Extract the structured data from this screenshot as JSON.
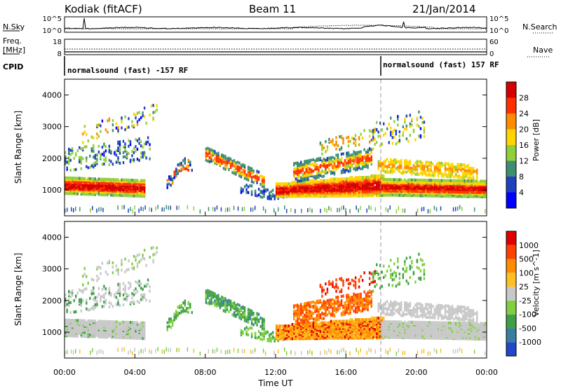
{
  "header": {
    "station": "Kodiak (fitACF)",
    "beam": "Beam 11",
    "date": "21/Jan/2014"
  },
  "top_panel": {
    "left_label": "N.Sky",
    "right_label": "N.Search",
    "left_ticks": [
      "10^5",
      "10^0"
    ],
    "right_ticks": [
      "10^5",
      "10^0"
    ]
  },
  "freq_panel": {
    "left_label_1": "Freq.",
    "left_label_2": "[MHz]",
    "right_label": "Nave",
    "left_ticks": [
      "18",
      "8"
    ],
    "right_ticks": [
      "60",
      "0"
    ]
  },
  "cpid": {
    "label": "CPID",
    "segments": [
      {
        "text": "normalsound (fast) -157 RF",
        "start_hour": 0
      },
      {
        "text": "normalsound (fast) 157 RF",
        "start_hour": 18
      }
    ]
  },
  "chart_data": [
    {
      "type": "heatmap",
      "name": "power",
      "ylabel": "Slant Range [km]",
      "colorbar_label": "Power [dB]",
      "colorbar_ticks": [
        "28",
        "24",
        "20",
        "16",
        "12",
        "8",
        "4"
      ],
      "colorbar_colors": [
        "#0000ff",
        "#2040c0",
        "#3e8f72",
        "#8fcf3a",
        "#ffd400",
        "#ff8c00",
        "#ff3000",
        "#d60000"
      ],
      "y_ticks": [
        "4000",
        "3000",
        "2000",
        "1000"
      ],
      "ylim": [
        180,
        4500
      ],
      "xlim": [
        0,
        24
      ]
    },
    {
      "type": "heatmap",
      "name": "velocity",
      "ylabel": "Slant Range [km]",
      "colorbar_label": "Velocity [m s^-1]",
      "colorbar_ticks": [
        "1000",
        "500",
        "100",
        "25",
        "-25",
        "-100",
        "-500",
        "-1000"
      ],
      "colorbar_colors": [
        "#2048c8",
        "#3a7fa0",
        "#3fa048",
        "#7fd040",
        "#c8c8c8",
        "#ffc020",
        "#ff8c00",
        "#ff4000",
        "#e00000"
      ],
      "y_ticks": [
        "4000",
        "3000",
        "2000",
        "1000"
      ],
      "ylim": [
        180,
        4500
      ],
      "xlim": [
        0,
        24
      ]
    }
  ],
  "x_axis": {
    "ticks": [
      "00:00",
      "04:00",
      "08:00",
      "12:00",
      "16:00",
      "20:00",
      "00:00"
    ],
    "label": "Time UT"
  },
  "colors": {
    "gray": "#c4c4c0",
    "power_red": "#e60000",
    "power_orange": "#ff8c00",
    "vel_orange": "#ff8c00",
    "vel_green": "#3fa048"
  }
}
